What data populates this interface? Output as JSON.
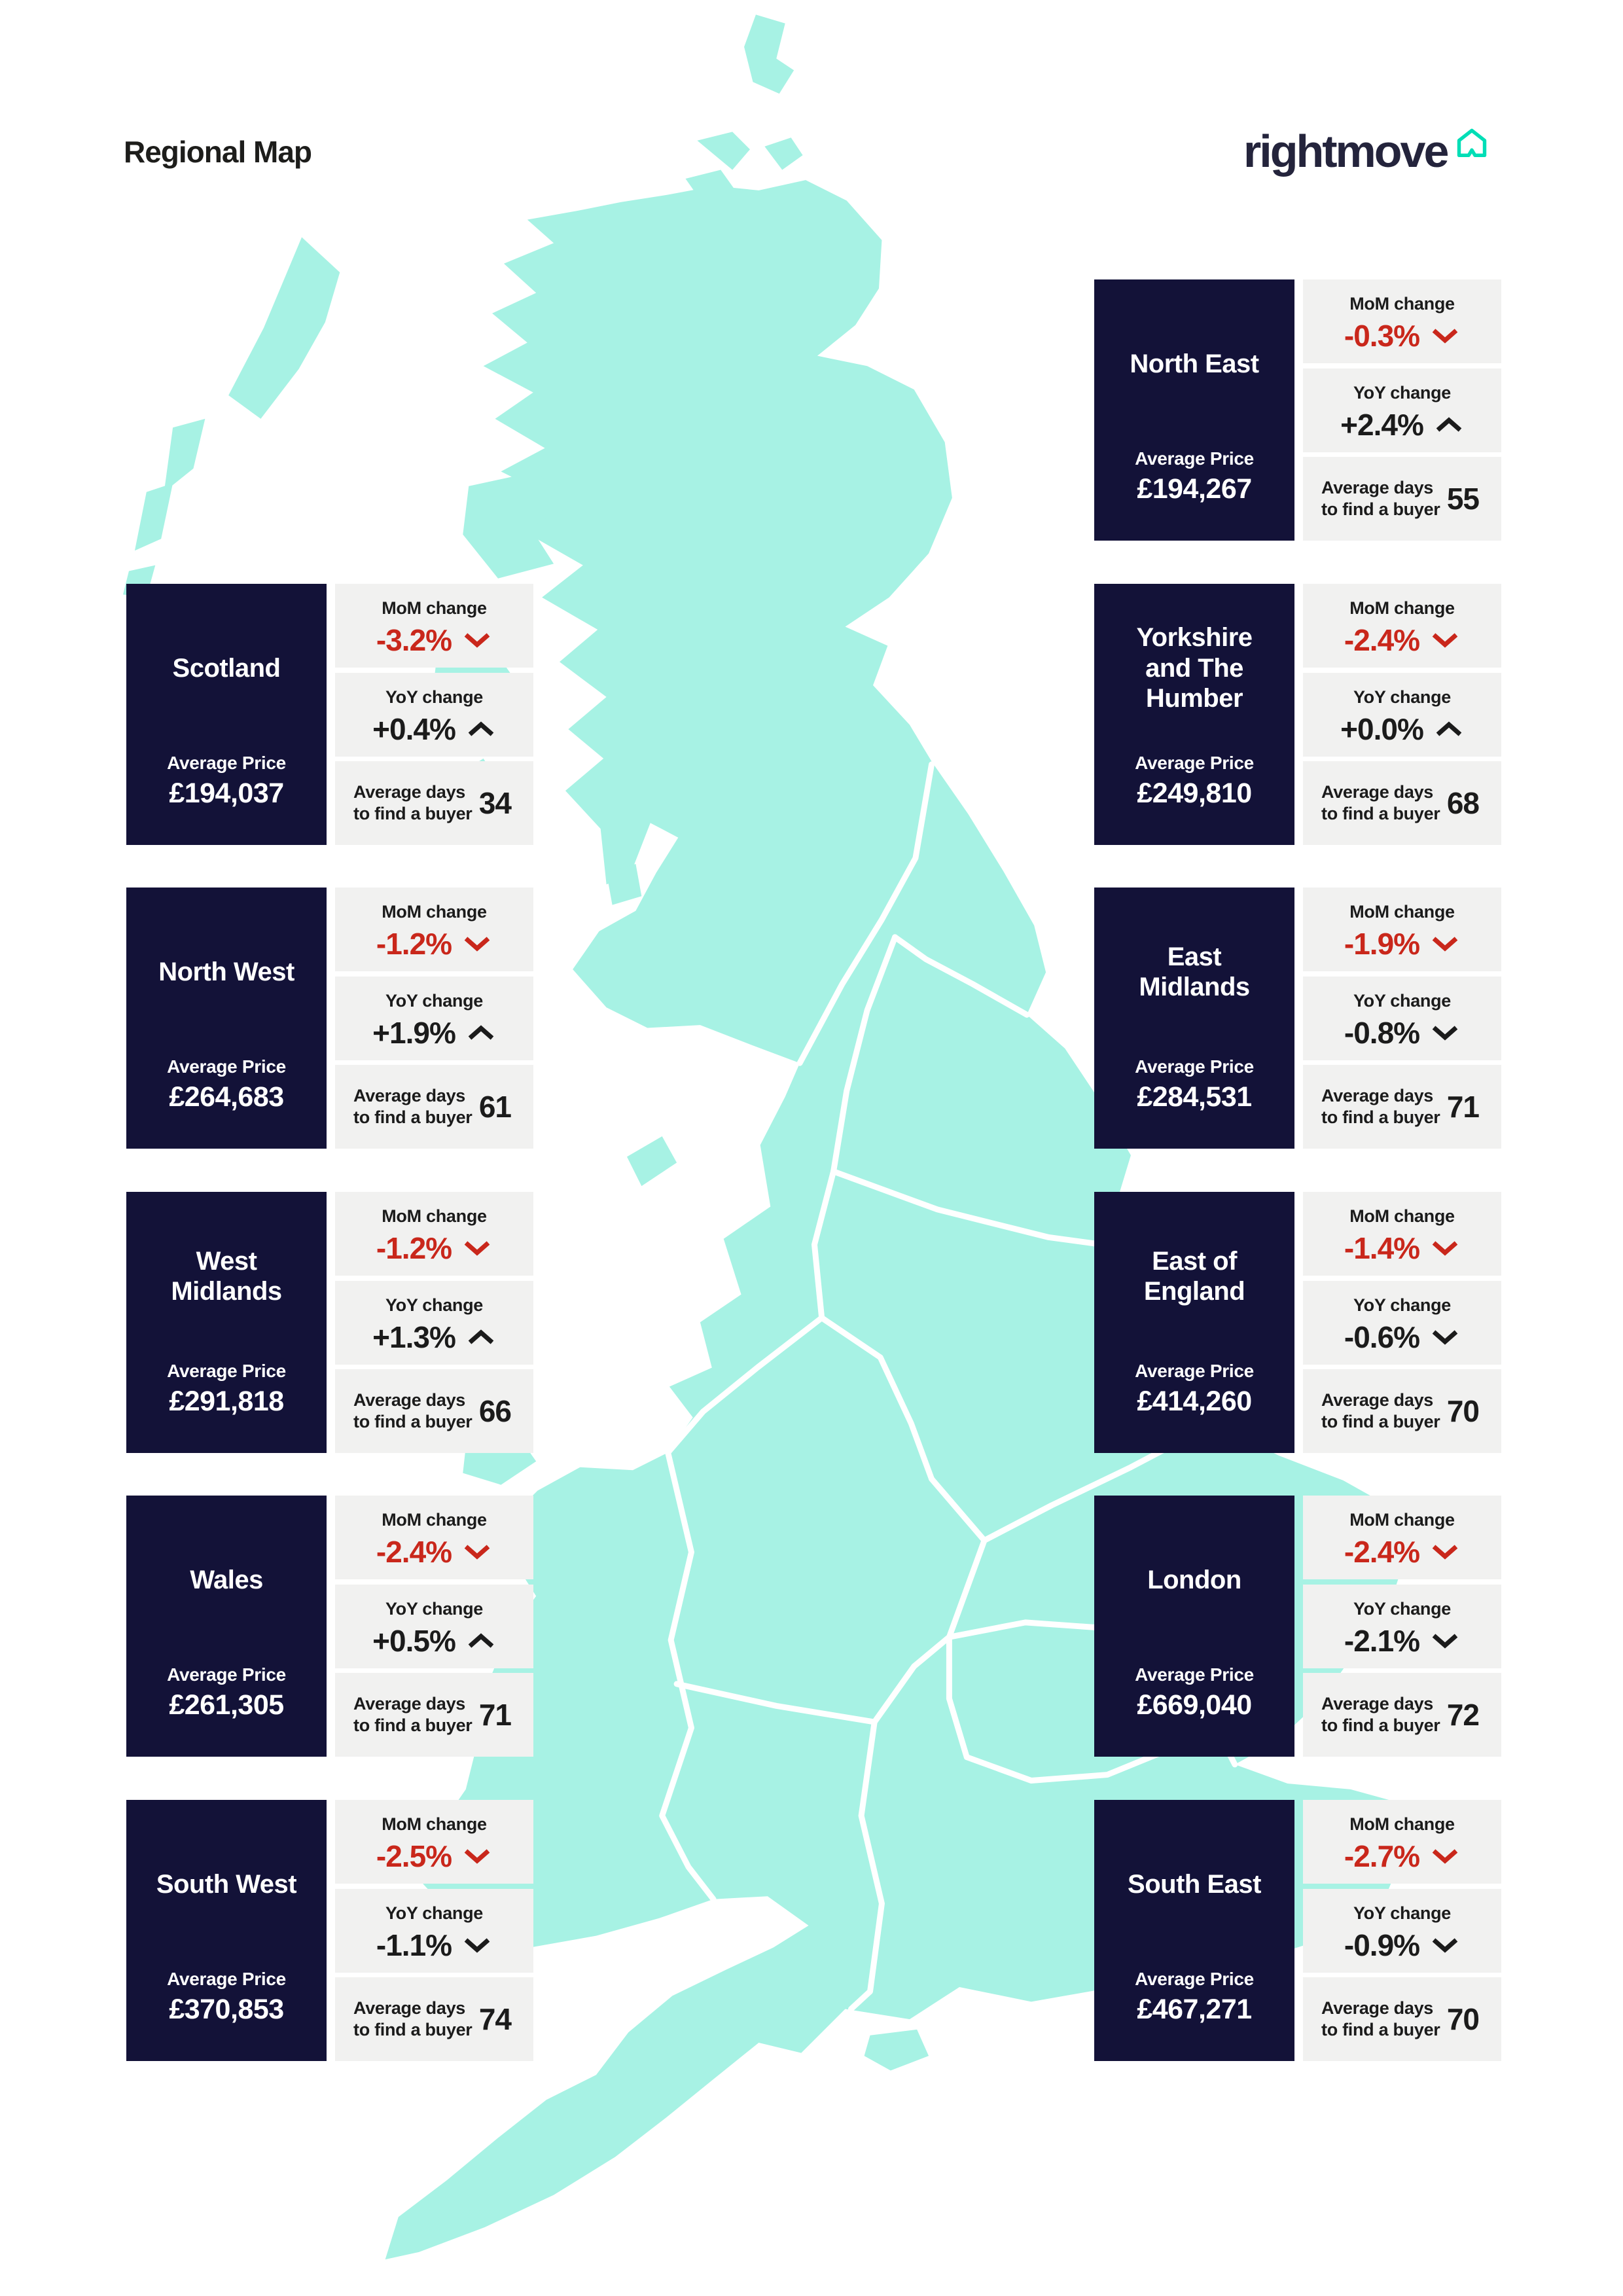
{
  "page": {
    "title": "Regional Map"
  },
  "brand": {
    "logo_text": "rightmove",
    "logo_icon": "house-outline-icon"
  },
  "labels": {
    "average_price": "Average Price",
    "mom_change": "MoM change",
    "yoy_change": "YoY change",
    "average_days_line1": "Average days",
    "average_days_line2": "to find a buyer"
  },
  "colors": {
    "card_navy": "#131238",
    "panel_gray": "#f1f1f0",
    "negative_red": "#c9271b",
    "text_dark": "#1b1b1b",
    "map_teal": "#a7f2e4",
    "brand_navy": "#24243c",
    "brand_teal": "#00deb6",
    "map_border_white": "#ffffff"
  },
  "regions": [
    {
      "name": "North East",
      "average_price": "£194,267",
      "mom_change": "-0.3%",
      "mom_trend": "down",
      "yoy_change": "+2.4%",
      "yoy_trend": "up",
      "days_to_find_buyer": "55",
      "column": "right",
      "row": 0
    },
    {
      "name": "Scotland",
      "average_price": "£194,037",
      "mom_change": "-3.2%",
      "mom_trend": "down",
      "yoy_change": "+0.4%",
      "yoy_trend": "up",
      "days_to_find_buyer": "34",
      "column": "left",
      "row": 1
    },
    {
      "name": "Yorkshire and The Humber",
      "average_price": "£249,810",
      "mom_change": "-2.4%",
      "mom_trend": "down",
      "yoy_change": "+0.0%",
      "yoy_trend": "up",
      "days_to_find_buyer": "68",
      "column": "right",
      "row": 1
    },
    {
      "name": "North West",
      "average_price": "£264,683",
      "mom_change": "-1.2%",
      "mom_trend": "down",
      "yoy_change": "+1.9%",
      "yoy_trend": "up",
      "days_to_find_buyer": "61",
      "column": "left",
      "row": 2
    },
    {
      "name": "East Midlands",
      "average_price": "£284,531",
      "mom_change": "-1.9%",
      "mom_trend": "down",
      "yoy_change": "-0.8%",
      "yoy_trend": "down",
      "days_to_find_buyer": "71",
      "column": "right",
      "row": 2
    },
    {
      "name": "West Midlands",
      "average_price": "£291,818",
      "mom_change": "-1.2%",
      "mom_trend": "down",
      "yoy_change": "+1.3%",
      "yoy_trend": "up",
      "days_to_find_buyer": "66",
      "column": "left",
      "row": 3
    },
    {
      "name": "East of England",
      "average_price": "£414,260",
      "mom_change": "-1.4%",
      "mom_trend": "down",
      "yoy_change": "-0.6%",
      "yoy_trend": "down",
      "days_to_find_buyer": "70",
      "column": "right",
      "row": 3
    },
    {
      "name": "Wales",
      "average_price": "£261,305",
      "mom_change": "-2.4%",
      "mom_trend": "down",
      "yoy_change": "+0.5%",
      "yoy_trend": "up",
      "days_to_find_buyer": "71",
      "column": "left",
      "row": 4
    },
    {
      "name": "London",
      "average_price": "£669,040",
      "mom_change": "-2.4%",
      "mom_trend": "down",
      "yoy_change": "-2.1%",
      "yoy_trend": "down",
      "days_to_find_buyer": "72",
      "column": "right",
      "row": 4
    },
    {
      "name": "South West",
      "average_price": "£370,853",
      "mom_change": "-2.5%",
      "mom_trend": "down",
      "yoy_change": "-1.1%",
      "yoy_trend": "down",
      "days_to_find_buyer": "74",
      "column": "left",
      "row": 5
    },
    {
      "name": "South East",
      "average_price": "£467,271",
      "mom_change": "-2.7%",
      "mom_trend": "down",
      "yoy_change": "-0.9%",
      "yoy_trend": "down",
      "days_to_find_buyer": "70",
      "column": "right",
      "row": 5
    }
  ]
}
